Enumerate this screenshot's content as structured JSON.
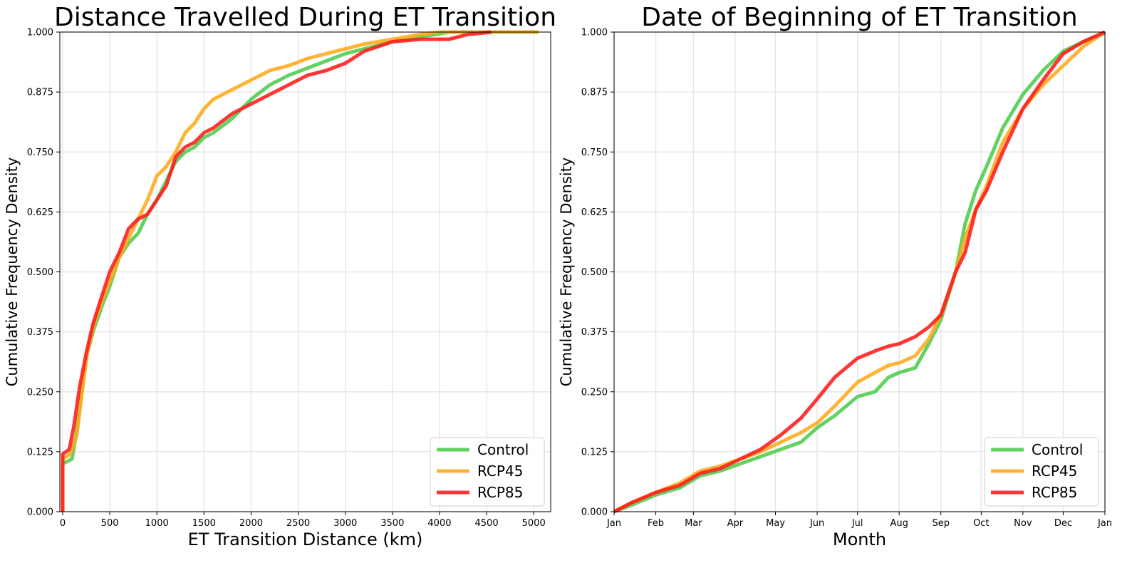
{
  "chart_data": [
    {
      "type": "line",
      "title": "Distance Travelled During ET Transition",
      "xlabel": "ET Transition Distance (km)",
      "ylabel": "Cumulative Frequency Density",
      "xlim": [
        -30,
        5180
      ],
      "ylim": [
        0,
        1
      ],
      "xticks": [
        0,
        500,
        1000,
        1500,
        2000,
        2500,
        3000,
        3500,
        4000,
        4500,
        5000
      ],
      "xtick_labels": [
        "0",
        "500",
        "1000",
        "1500",
        "2000",
        "2500",
        "3000",
        "3500",
        "4000",
        "4500",
        "5000"
      ],
      "yticks": [
        0,
        0.125,
        0.25,
        0.375,
        0.5,
        0.625,
        0.75,
        0.875,
        1.0
      ],
      "ytick_labels": [
        "0.000",
        "0.125",
        "0.250",
        "0.375",
        "0.500",
        "0.625",
        "0.750",
        "0.875",
        "1.000"
      ],
      "grid": true,
      "legend_position": "lower-right",
      "series": [
        {
          "name": "Control",
          "color": "#4dcc4d",
          "x": [
            0,
            0,
            100,
            150,
            200,
            260,
            330,
            420,
            500,
            600,
            700,
            800,
            900,
            1000,
            1100,
            1200,
            1300,
            1400,
            1500,
            1600,
            1800,
            2000,
            2200,
            2400,
            2600,
            2800,
            3000,
            3200,
            3500,
            3800,
            4100,
            4500,
            5050
          ],
          "y": [
            0,
            0.1,
            0.11,
            0.17,
            0.25,
            0.33,
            0.38,
            0.43,
            0.47,
            0.53,
            0.56,
            0.58,
            0.62,
            0.65,
            0.69,
            0.73,
            0.75,
            0.76,
            0.78,
            0.79,
            0.82,
            0.86,
            0.89,
            0.91,
            0.925,
            0.94,
            0.955,
            0.965,
            0.98,
            0.99,
            1.0,
            1.0,
            1.0
          ]
        },
        {
          "name": "RCP45",
          "color": "#ffaa1a",
          "x": [
            0,
            0,
            80,
            150,
            200,
            260,
            330,
            420,
            500,
            600,
            700,
            800,
            900,
            1000,
            1100,
            1200,
            1300,
            1400,
            1500,
            1600,
            1800,
            2000,
            2200,
            2400,
            2600,
            2800,
            3000,
            3200,
            3500,
            3800,
            4000,
            4500,
            5050
          ],
          "y": [
            0,
            0.11,
            0.12,
            0.16,
            0.24,
            0.33,
            0.39,
            0.44,
            0.48,
            0.53,
            0.57,
            0.61,
            0.65,
            0.7,
            0.72,
            0.75,
            0.79,
            0.81,
            0.84,
            0.86,
            0.88,
            0.9,
            0.92,
            0.93,
            0.945,
            0.955,
            0.965,
            0.975,
            0.985,
            0.995,
            1.0,
            1.0,
            1.0
          ]
        },
        {
          "name": "RCP85",
          "color": "#ff1a1a",
          "x": [
            0,
            0,
            70,
            120,
            180,
            250,
            320,
            400,
            500,
            600,
            700,
            800,
            900,
            1000,
            1100,
            1200,
            1300,
            1400,
            1500,
            1600,
            1800,
            2000,
            2200,
            2400,
            2600,
            2800,
            3000,
            3200,
            3500,
            3800,
            4100,
            4300,
            4550
          ],
          "y": [
            0,
            0.12,
            0.13,
            0.18,
            0.26,
            0.33,
            0.39,
            0.44,
            0.5,
            0.54,
            0.59,
            0.61,
            0.62,
            0.65,
            0.68,
            0.74,
            0.76,
            0.77,
            0.79,
            0.8,
            0.83,
            0.85,
            0.87,
            0.89,
            0.91,
            0.92,
            0.935,
            0.96,
            0.98,
            0.985,
            0.985,
            0.995,
            1.0
          ]
        }
      ]
    },
    {
      "type": "line",
      "title": "Date of Beginning of ET Transition",
      "xlabel": "Month",
      "ylabel": "Cumulative Frequency Density",
      "xlim": [
        1,
        366
      ],
      "ylim": [
        0,
        1
      ],
      "xticks": [
        1,
        32,
        60,
        91,
        121,
        152,
        182,
        213,
        244,
        274,
        305,
        335,
        366
      ],
      "xtick_labels": [
        "Jan",
        "Feb",
        "Mar",
        "Apr",
        "May",
        "Jun",
        "Jul",
        "Aug",
        "Sep",
        "Oct",
        "Nov",
        "Dec",
        "Jan"
      ],
      "yticks": [
        0,
        0.125,
        0.25,
        0.375,
        0.5,
        0.625,
        0.75,
        0.875,
        1.0
      ],
      "ytick_labels": [
        "0.000",
        "0.125",
        "0.250",
        "0.375",
        "0.500",
        "0.625",
        "0.750",
        "0.875",
        "1.000"
      ],
      "grid": true,
      "legend_position": "lower-right",
      "series": [
        {
          "name": "Control",
          "color": "#4dcc4d",
          "x": [
            1,
            15,
            32,
            50,
            65,
            80,
            95,
            110,
            125,
            140,
            152,
            165,
            182,
            195,
            205,
            213,
            225,
            235,
            244,
            255,
            262,
            270,
            278,
            290,
            305,
            320,
            335,
            350,
            366
          ],
          "y": [
            0,
            0.015,
            0.035,
            0.05,
            0.075,
            0.085,
            0.1,
            0.115,
            0.13,
            0.145,
            0.175,
            0.2,
            0.24,
            0.25,
            0.28,
            0.29,
            0.3,
            0.35,
            0.4,
            0.5,
            0.6,
            0.67,
            0.72,
            0.8,
            0.87,
            0.92,
            0.96,
            0.98,
            1.0
          ]
        },
        {
          "name": "RCP45",
          "color": "#ffaa1a",
          "x": [
            1,
            15,
            32,
            50,
            65,
            80,
            95,
            110,
            125,
            140,
            152,
            165,
            182,
            195,
            205,
            213,
            225,
            235,
            244,
            255,
            262,
            270,
            278,
            290,
            305,
            320,
            335,
            350,
            366
          ],
          "y": [
            0,
            0.02,
            0.04,
            0.06,
            0.085,
            0.095,
            0.11,
            0.125,
            0.145,
            0.165,
            0.185,
            0.22,
            0.27,
            0.29,
            0.305,
            0.31,
            0.325,
            0.36,
            0.41,
            0.5,
            0.57,
            0.63,
            0.68,
            0.77,
            0.84,
            0.89,
            0.93,
            0.97,
            1.0
          ]
        },
        {
          "name": "RCP85",
          "color": "#ff1a1a",
          "x": [
            1,
            15,
            32,
            50,
            65,
            80,
            95,
            110,
            125,
            140,
            152,
            165,
            182,
            195,
            205,
            213,
            225,
            235,
            244,
            255,
            262,
            270,
            278,
            290,
            305,
            320,
            335,
            350,
            366
          ],
          "y": [
            0,
            0.02,
            0.04,
            0.055,
            0.08,
            0.09,
            0.11,
            0.13,
            0.16,
            0.195,
            0.235,
            0.28,
            0.32,
            0.335,
            0.345,
            0.35,
            0.365,
            0.385,
            0.41,
            0.5,
            0.54,
            0.63,
            0.67,
            0.75,
            0.84,
            0.9,
            0.955,
            0.98,
            1.0
          ]
        }
      ]
    }
  ]
}
